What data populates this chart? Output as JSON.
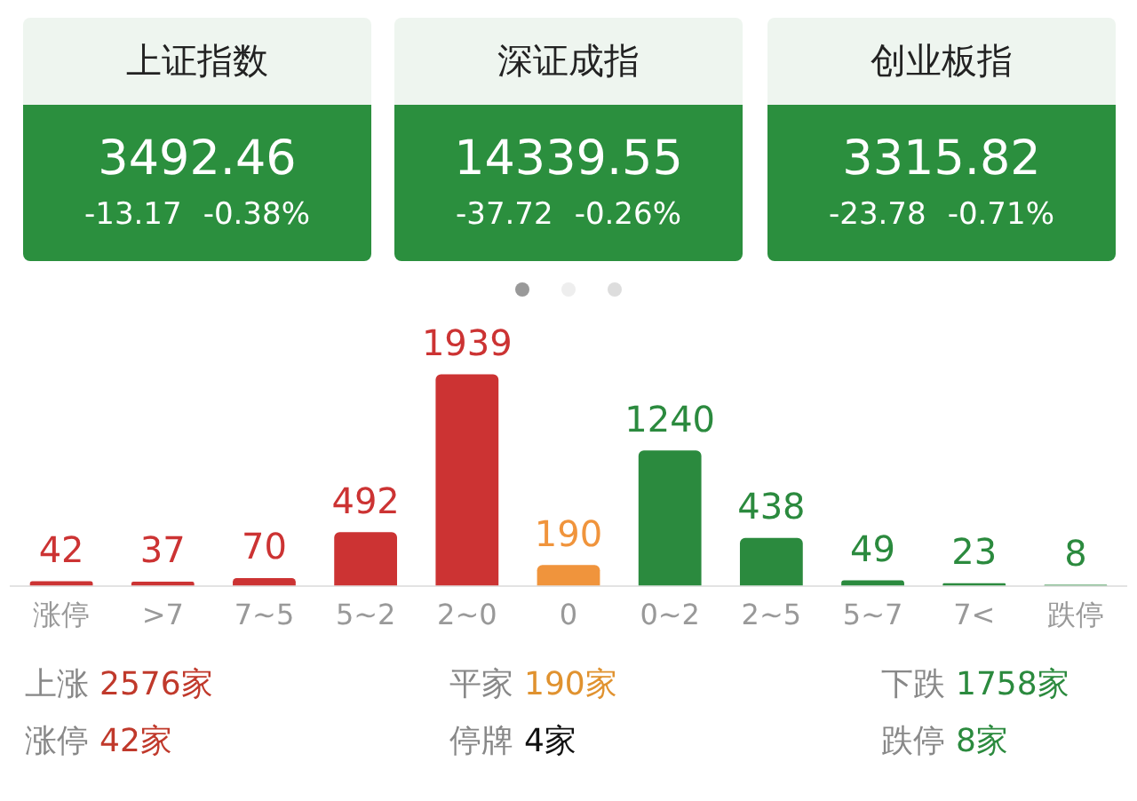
{
  "chart_data": {
    "type": "bar",
    "categories": [
      "涨停",
      ">7",
      "7~5",
      "5~2",
      "2~0",
      "0",
      "0~2",
      "2~5",
      "5~7",
      "7<",
      "跌停"
    ],
    "values": [
      42,
      37,
      70,
      492,
      1939,
      190,
      1240,
      438,
      49,
      23,
      8
    ],
    "colors": [
      "#cc3333",
      "#cc3333",
      "#cc3333",
      "#cc3333",
      "#cc3333",
      "#f0943c",
      "#2b8a3e",
      "#2b8a3e",
      "#2b8a3e",
      "#2b8a3e",
      "#2b8a3e"
    ],
    "data_labels": true,
    "tick_labels": "x",
    "grid": false,
    "legend": false,
    "annotations": [
      "上证指数",
      "3492.46",
      "-13.17",
      "-0.38%",
      "深证成指",
      "14339.55",
      "-37.72",
      "-0.26%",
      "创业板指",
      "3315.82",
      "-23.78",
      "-0.71%",
      "上涨",
      "2576家",
      "平家",
      "190家",
      "下跌",
      "1758家",
      "涨停",
      "42家",
      "停牌",
      "4家",
      "跌停",
      "8家"
    ]
  }
}
